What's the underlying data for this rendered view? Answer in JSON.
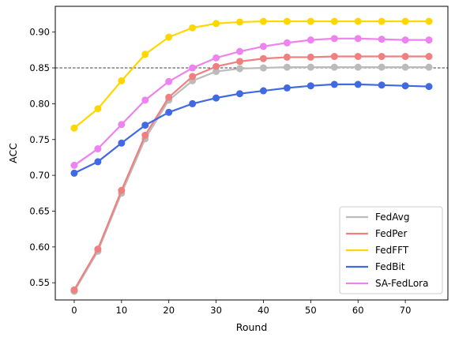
{
  "chart_data": {
    "type": "line",
    "title": "",
    "xlabel": "Round",
    "ylabel": "ACC",
    "x": [
      0,
      5,
      10,
      15,
      20,
      25,
      30,
      35,
      40,
      45,
      50,
      55,
      60,
      65,
      70,
      75
    ],
    "xlim": [
      -4,
      79
    ],
    "ylim": [
      0.526,
      0.936
    ],
    "xticks": [
      0,
      10,
      20,
      30,
      40,
      50,
      60,
      70
    ],
    "yticks": [
      0.55,
      0.6,
      0.65,
      0.7,
      0.75,
      0.8,
      0.85,
      0.9
    ],
    "ytick_labels": [
      "0.55",
      "0.60",
      "0.65",
      "0.70",
      "0.75",
      "0.80",
      "0.85",
      "0.90"
    ],
    "reference_line": {
      "y": 0.85,
      "style": "dashed",
      "color": "#000000"
    },
    "grid": false,
    "legend_position": "bottom-right",
    "series": [
      {
        "name": "FedAvg",
        "color": "#bbbbbb",
        "values": [
          0.538,
          0.594,
          0.675,
          0.751,
          0.805,
          0.832,
          0.845,
          0.849,
          0.85,
          0.851,
          0.851,
          0.851,
          0.851,
          0.851,
          0.851,
          0.851
        ]
      },
      {
        "name": "FedPer",
        "color": "#f08080",
        "values": [
          0.54,
          0.597,
          0.679,
          0.756,
          0.809,
          0.838,
          0.852,
          0.859,
          0.863,
          0.865,
          0.865,
          0.866,
          0.866,
          0.866,
          0.866,
          0.866
        ]
      },
      {
        "name": "FedFFT",
        "color": "#ffd700",
        "values": [
          0.766,
          0.793,
          0.832,
          0.869,
          0.893,
          0.906,
          0.912,
          0.914,
          0.915,
          0.915,
          0.915,
          0.915,
          0.915,
          0.915,
          0.915,
          0.915
        ]
      },
      {
        "name": "FedBit",
        "color": "#4169e1",
        "values": [
          0.703,
          0.719,
          0.745,
          0.77,
          0.788,
          0.8,
          0.808,
          0.814,
          0.818,
          0.822,
          0.825,
          0.827,
          0.827,
          0.826,
          0.825,
          0.824
        ]
      },
      {
        "name": "SA-FedLora",
        "color": "#ee82ee",
        "values": [
          0.714,
          0.737,
          0.771,
          0.805,
          0.831,
          0.85,
          0.864,
          0.873,
          0.88,
          0.885,
          0.889,
          0.891,
          0.891,
          0.89,
          0.889,
          0.889
        ]
      }
    ]
  }
}
